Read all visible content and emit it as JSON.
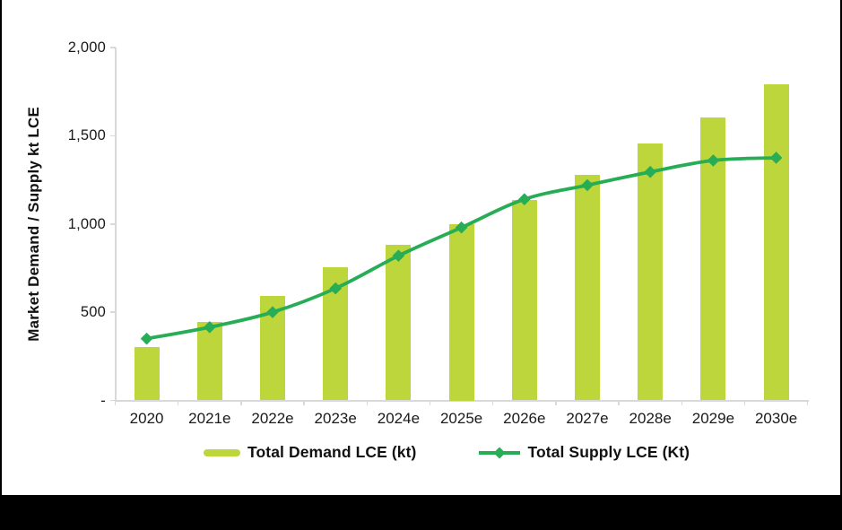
{
  "chart_data": {
    "type": "bar+line",
    "categories": [
      "2020",
      "2021e",
      "2022e",
      "2023e",
      "2024e",
      "2025e",
      "2026e",
      "2027e",
      "2028e",
      "2029e",
      "2030e"
    ],
    "series": [
      {
        "name": "Total Demand LCE (kt)",
        "type": "bar",
        "color": "#bcd63c",
        "values": [
          300,
          445,
          590,
          755,
          880,
          1000,
          1135,
          1280,
          1455,
          1605,
          1790
        ]
      },
      {
        "name": "Total Supply LCE (Kt)",
        "type": "line",
        "color": "#26ad55",
        "marker": "diamond",
        "values": [
          350,
          415,
          500,
          635,
          820,
          980,
          1140,
          1220,
          1295,
          1360,
          1375
        ]
      }
    ],
    "title": "",
    "xlabel": "",
    "ylabel": "Market Demand / Supply kt LCE",
    "ylim": [
      0,
      2000
    ],
    "ytick_values": [
      0,
      500,
      1000,
      1500,
      2000
    ],
    "ytick_labels": [
      "-",
      "500",
      "1,000",
      "1,500",
      "2,000"
    ],
    "grid": false,
    "legend_position": "bottom"
  },
  "frame": {
    "background": "#ffffff",
    "border_color": "#000000",
    "axis_color": "#d9d9d9",
    "text_color": "#1a1a1a"
  }
}
